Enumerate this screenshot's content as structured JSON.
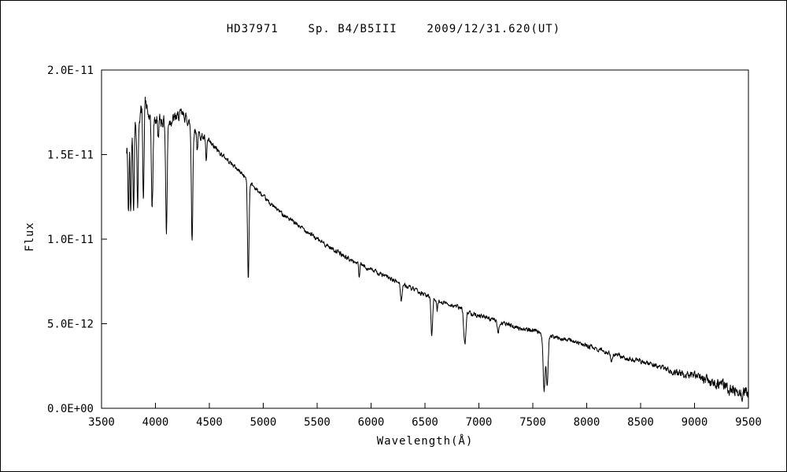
{
  "figure": {
    "background": "#ffffff",
    "border_color": "#000000"
  },
  "chart_data": {
    "type": "line",
    "title": "HD37971    Sp. B4/B5III    2009/12/31.620(UT)",
    "xlabel": "Wavelength(Å)",
    "ylabel": "Flux",
    "xlim": [
      3500,
      9500
    ],
    "ylim_flux_1e11": [
      0,
      2.0
    ],
    "x_ticks": [
      3500,
      4000,
      4500,
      5000,
      5500,
      6000,
      6500,
      7000,
      7500,
      8000,
      8500,
      9000,
      9500
    ],
    "y_ticks": [
      {
        "value_1e11": 0.0,
        "label": "0.0E+00"
      },
      {
        "value_1e11": 0.5,
        "label": "5.0E-12"
      },
      {
        "value_1e11": 1.0,
        "label": "1.0E-11"
      },
      {
        "value_1e11": 1.5,
        "label": "1.5E-11"
      },
      {
        "value_1e11": 2.0,
        "label": "2.0E-11"
      }
    ],
    "grid": false,
    "legend": false,
    "line_color": "#000000",
    "series": [
      {
        "name": "HD37971 spectrum",
        "x_range": [
          3730,
          9500
        ],
        "flux_scale": "1E-11",
        "continuum_points": [
          [
            3730,
            1.5
          ],
          [
            3745,
            1.55
          ],
          [
            3760,
            1.58
          ],
          [
            3780,
            1.62
          ],
          [
            3800,
            1.66
          ],
          [
            3830,
            1.7
          ],
          [
            3860,
            1.74
          ],
          [
            3890,
            1.8
          ],
          [
            3905,
            1.84
          ],
          [
            3920,
            1.76
          ],
          [
            3950,
            1.7
          ],
          [
            3975,
            1.7
          ],
          [
            4000,
            1.71
          ],
          [
            4060,
            1.7
          ],
          [
            4130,
            1.7
          ],
          [
            4200,
            1.72
          ],
          [
            4240,
            1.74
          ],
          [
            4280,
            1.72
          ],
          [
            4320,
            1.68
          ],
          [
            4400,
            1.62
          ],
          [
            4450,
            1.6
          ],
          [
            4500,
            1.57
          ],
          [
            4550,
            1.54
          ],
          [
            4600,
            1.51
          ],
          [
            4650,
            1.48
          ],
          [
            4700,
            1.45
          ],
          [
            4750,
            1.42
          ],
          [
            4800,
            1.39
          ],
          [
            4900,
            1.32
          ],
          [
            5000,
            1.25
          ],
          [
            5100,
            1.19
          ],
          [
            5200,
            1.14
          ],
          [
            5300,
            1.09
          ],
          [
            5400,
            1.05
          ],
          [
            5500,
            1.0
          ],
          [
            5600,
            0.96
          ],
          [
            5700,
            0.92
          ],
          [
            5800,
            0.88
          ],
          [
            5900,
            0.85
          ],
          [
            6000,
            0.82
          ],
          [
            6100,
            0.79
          ],
          [
            6200,
            0.76
          ],
          [
            6300,
            0.73
          ],
          [
            6400,
            0.7
          ],
          [
            6500,
            0.67
          ],
          [
            6600,
            0.64
          ],
          [
            6700,
            0.62
          ],
          [
            6800,
            0.6
          ],
          [
            6900,
            0.57
          ],
          [
            7000,
            0.55
          ],
          [
            7100,
            0.53
          ],
          [
            7200,
            0.51
          ],
          [
            7300,
            0.49
          ],
          [
            7400,
            0.47
          ],
          [
            7500,
            0.46
          ],
          [
            7600,
            0.44
          ],
          [
            7700,
            0.42
          ],
          [
            7800,
            0.41
          ],
          [
            7900,
            0.39
          ],
          [
            8000,
            0.37
          ],
          [
            8100,
            0.35
          ],
          [
            8200,
            0.33
          ],
          [
            8300,
            0.31
          ],
          [
            8400,
            0.29
          ],
          [
            8500,
            0.28
          ],
          [
            8600,
            0.26
          ],
          [
            8700,
            0.24
          ],
          [
            8800,
            0.22
          ],
          [
            8900,
            0.2
          ],
          [
            9000,
            0.19
          ],
          [
            9100,
            0.17
          ],
          [
            9200,
            0.15
          ],
          [
            9300,
            0.13
          ],
          [
            9400,
            0.11
          ],
          [
            9500,
            0.09
          ]
        ],
        "absorption_lines": [
          {
            "center": 3750,
            "depth": 0.42,
            "sigma": 5
          },
          {
            "center": 3771,
            "depth": 0.45,
            "sigma": 5
          },
          {
            "center": 3798,
            "depth": 0.48,
            "sigma": 5
          },
          {
            "center": 3835,
            "depth": 0.5,
            "sigma": 6
          },
          {
            "center": 3889,
            "depth": 0.55,
            "sigma": 6
          },
          {
            "center": 3970,
            "depth": 0.52,
            "sigma": 7
          },
          {
            "center": 4026,
            "depth": 0.1,
            "sigma": 5
          },
          {
            "center": 4102,
            "depth": 0.66,
            "sigma": 7
          },
          {
            "center": 4340,
            "depth": 0.66,
            "sigma": 7
          },
          {
            "center": 4388,
            "depth": 0.1,
            "sigma": 5
          },
          {
            "center": 4471,
            "depth": 0.14,
            "sigma": 5
          },
          {
            "center": 4861,
            "depth": 0.58,
            "sigma": 7
          },
          {
            "center": 5890,
            "depth": 0.08,
            "sigma": 5
          },
          {
            "center": 6280,
            "depth": 0.1,
            "sigma": 7
          },
          {
            "center": 6563,
            "depth": 0.22,
            "sigma": 7
          },
          {
            "center": 6613,
            "depth": 0.06,
            "sigma": 5
          },
          {
            "center": 6870,
            "depth": 0.2,
            "sigma": 10
          },
          {
            "center": 7180,
            "depth": 0.06,
            "sigma": 10
          },
          {
            "center": 7605,
            "depth": 0.33,
            "sigma": 9
          },
          {
            "center": 7633,
            "depth": 0.3,
            "sigma": 9
          },
          {
            "center": 8230,
            "depth": 0.04,
            "sigma": 8
          },
          {
            "center": 9320,
            "depth": 0.04,
            "sigma": 10
          },
          {
            "center": 9440,
            "depth": 0.04,
            "sigma": 8
          }
        ]
      }
    ]
  }
}
